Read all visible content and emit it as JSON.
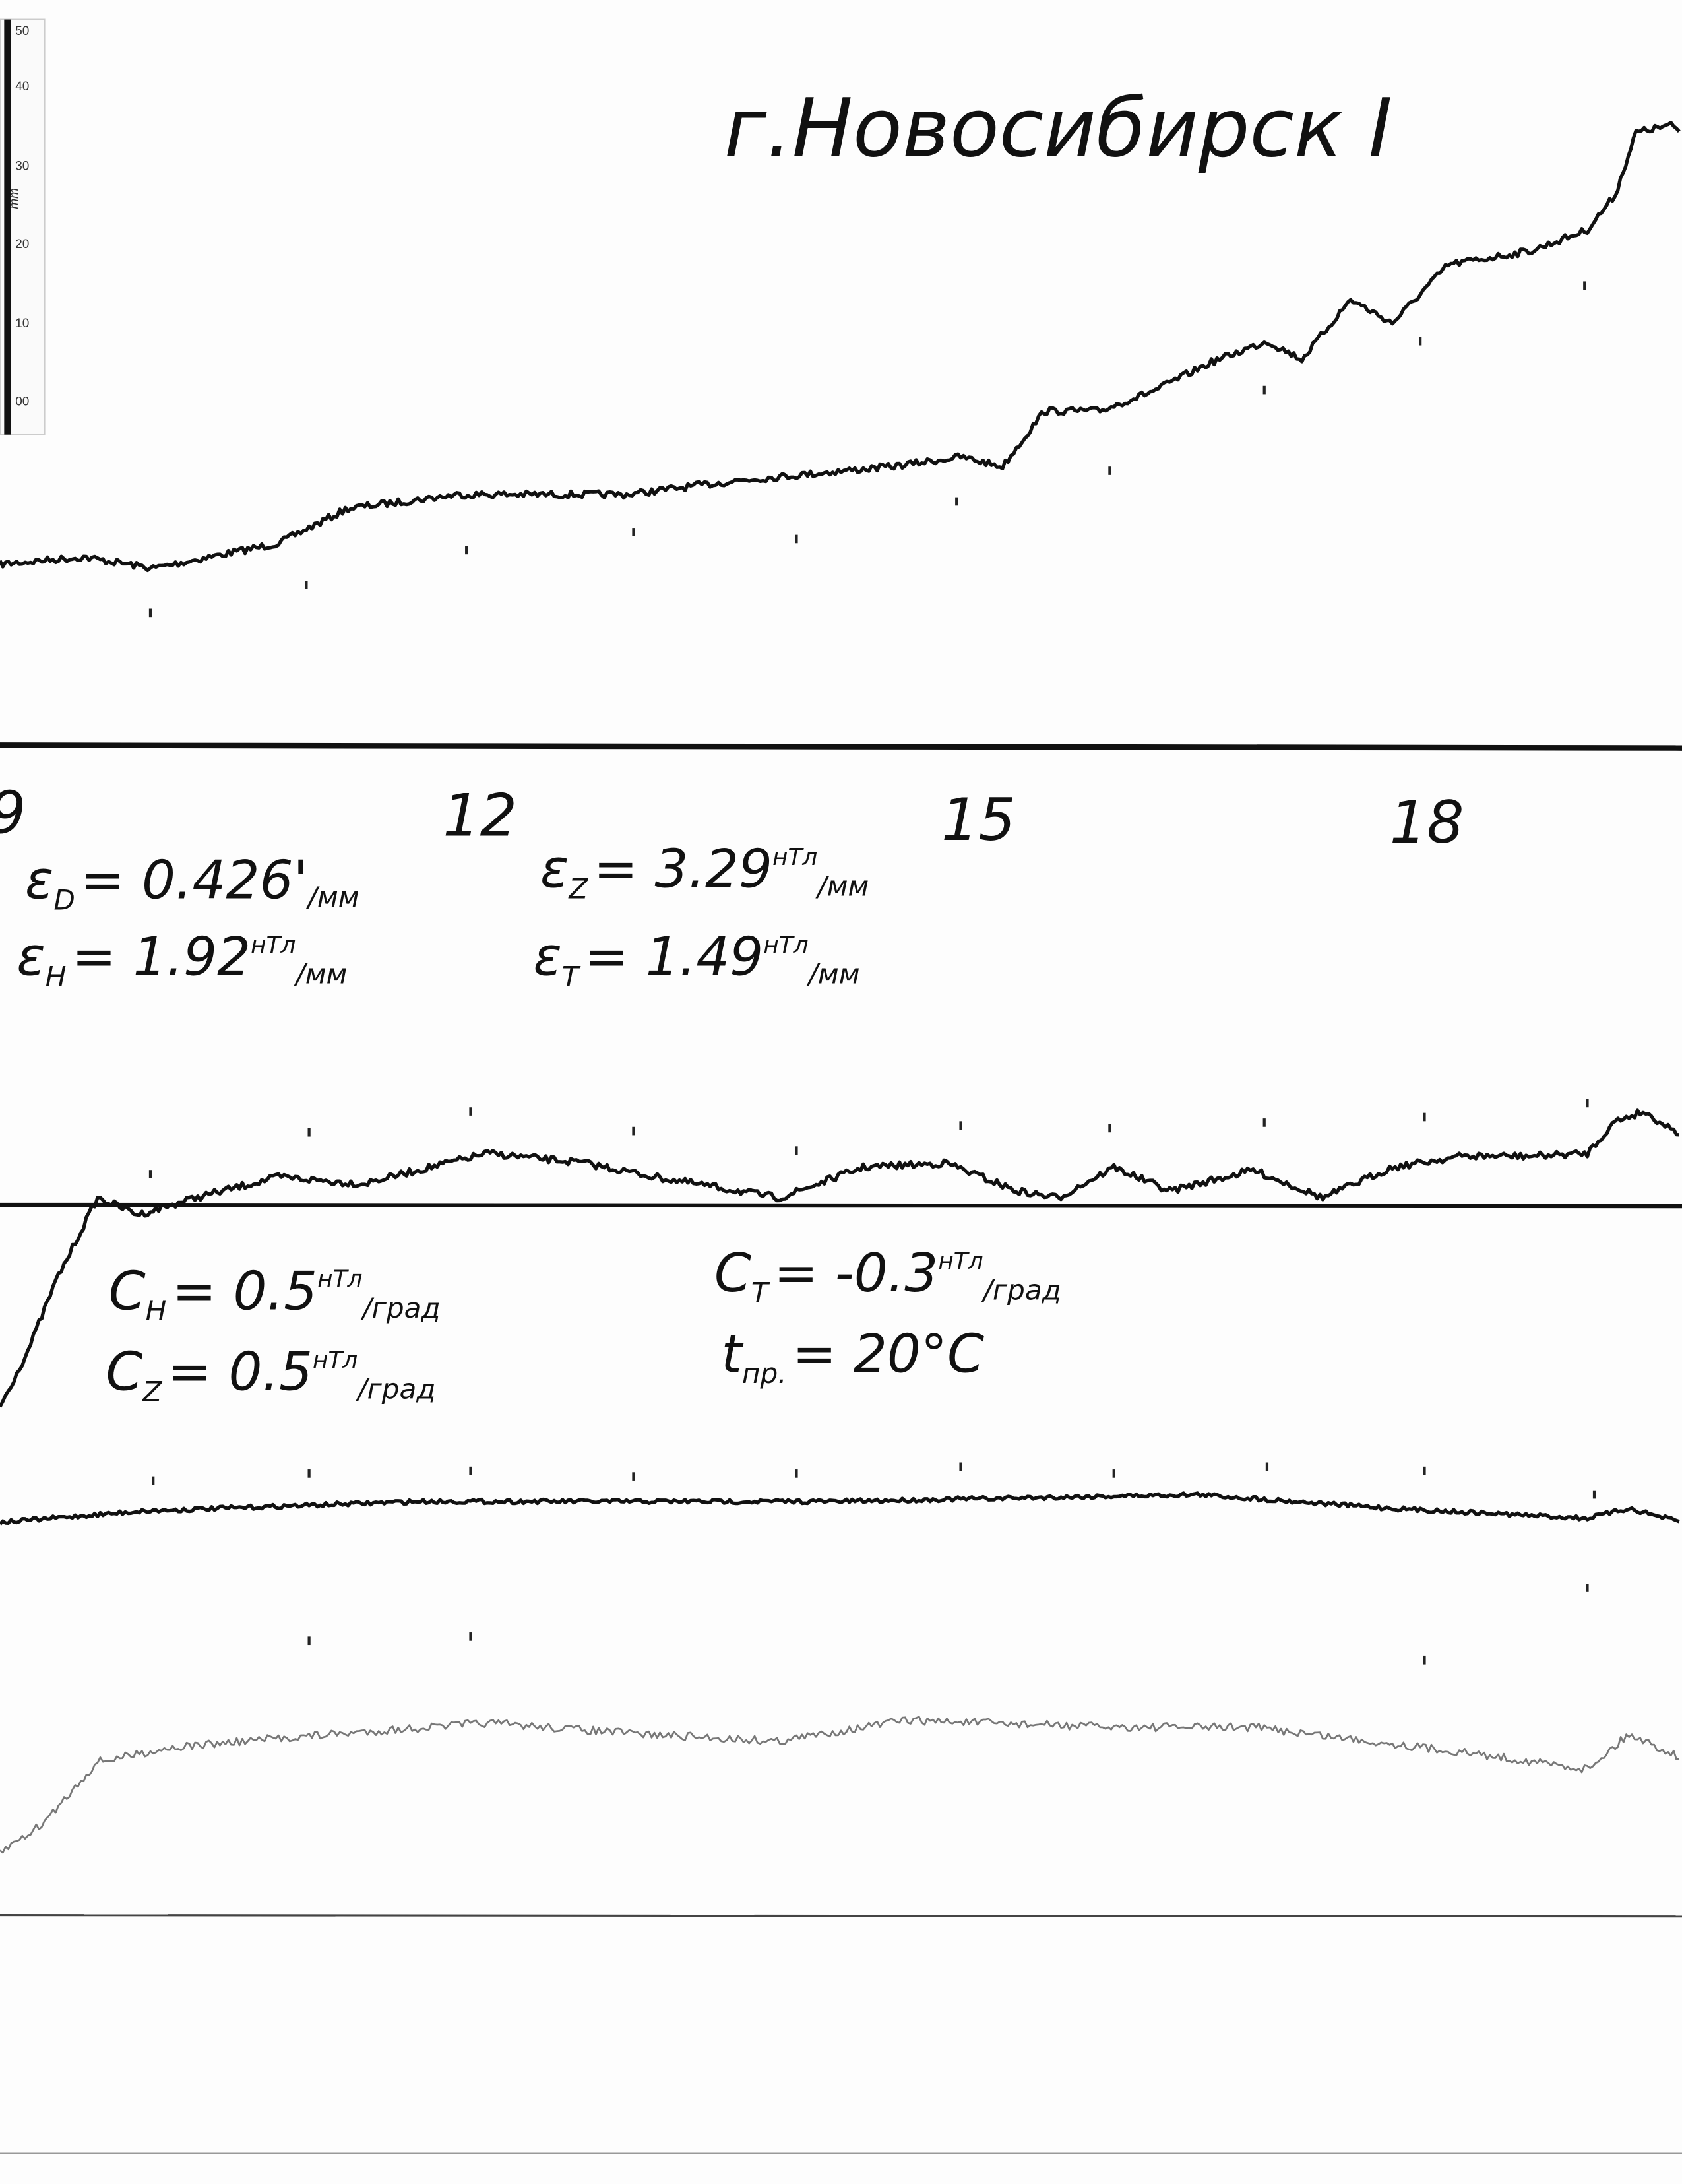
{
  "title": "г.Новосибирск I",
  "scale": {
    "labels": [
      "50",
      "40",
      "30",
      "20",
      "10",
      "00"
    ],
    "unit": "mm"
  },
  "hours": [
    "9",
    "12",
    "15",
    "18"
  ],
  "formulas": [
    {
      "symbol": "ε",
      "sub": "D",
      "value": "= 0.426'",
      "den": "/мм"
    },
    {
      "symbol": "ε",
      "sub": "H",
      "value": "= 1.92",
      "sup": "нТл",
      "den": "/мм"
    },
    {
      "symbol": "ε",
      "sub": "Z",
      "value": "= 3.29",
      "sup": "нТл",
      "den": "/мм"
    },
    {
      "symbol": "ε",
      "sub": "T",
      "value": "= 1.49",
      "sup": "нТл",
      "den": "/мм"
    },
    {
      "symbol": "C",
      "sub": "H",
      "value": "= 0.5",
      "sup": "нТл",
      "den": "/град"
    },
    {
      "symbol": "C",
      "sub": "Z",
      "value": "= 0.5",
      "sup": "нТл",
      "den": "/град"
    },
    {
      "symbol": "C",
      "sub": "T",
      "value": "= -0.3",
      "sup": "нТл",
      "den": "/град"
    },
    {
      "symbol": "t",
      "sub": "пр.",
      "value": "= 20°C"
    }
  ]
}
